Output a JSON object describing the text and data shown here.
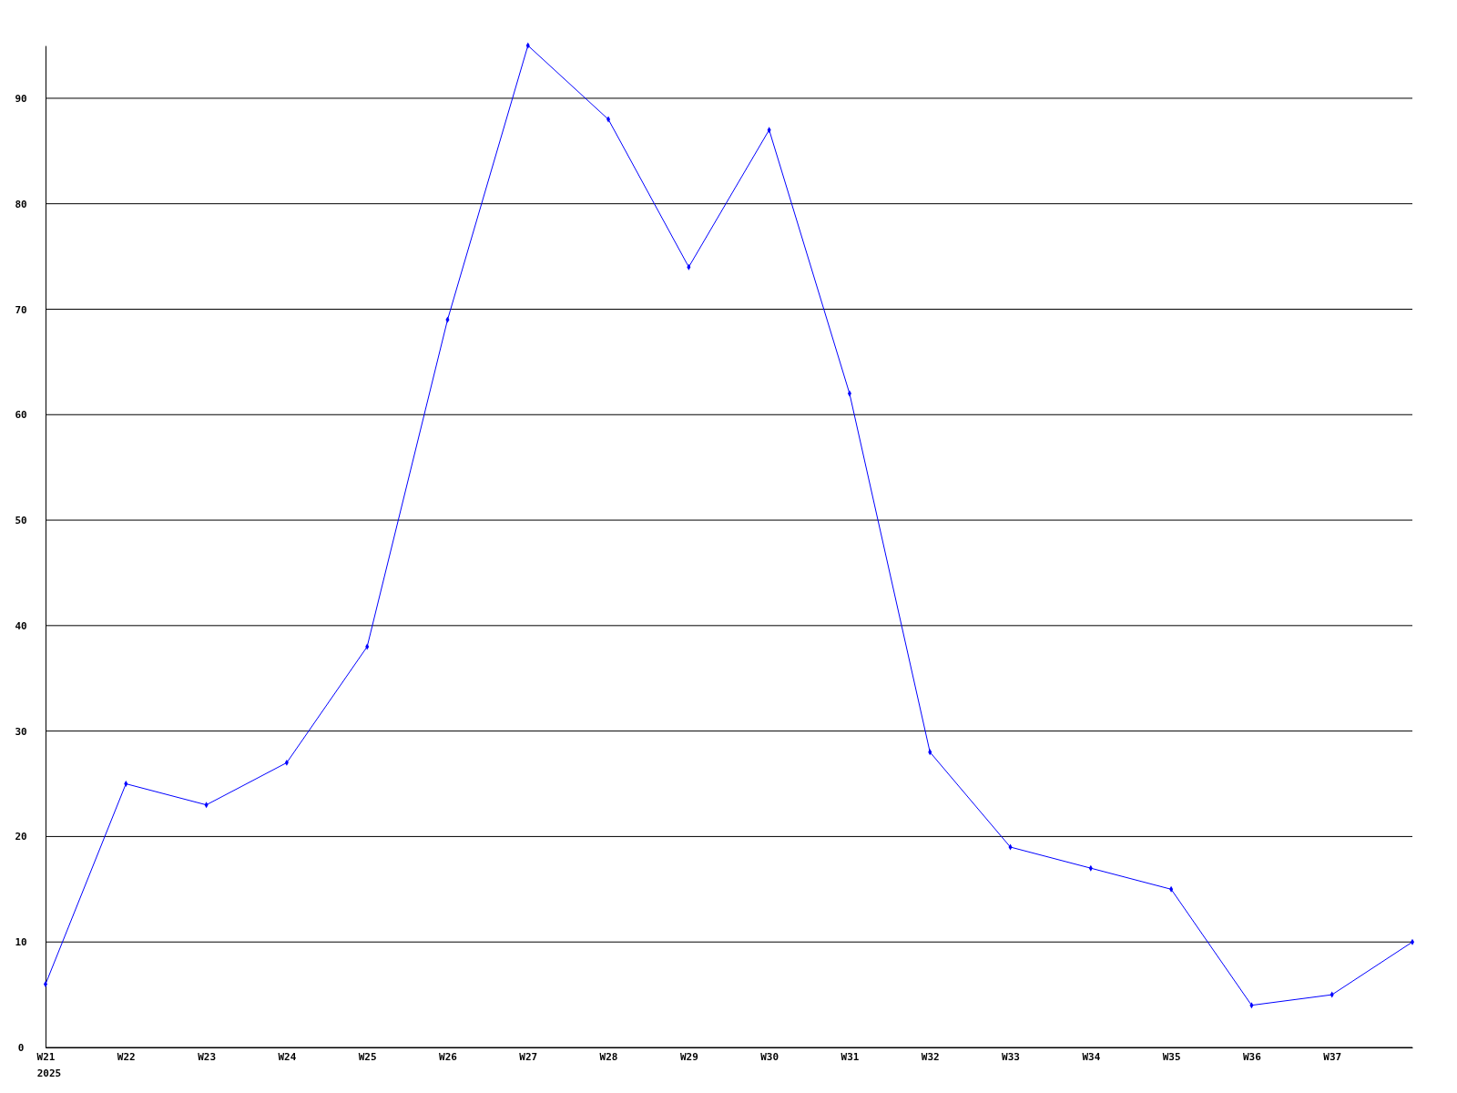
{
  "chart_data": {
    "type": "line",
    "categories": [
      "W21",
      "W22",
      "W23",
      "W24",
      "W25",
      "W26",
      "W27",
      "W28",
      "W29",
      "W30",
      "W31",
      "W32",
      "W33",
      "W34",
      "W35",
      "W36",
      "W37",
      null
    ],
    "series": [
      {
        "color": "#0000ff",
        "values": [
          6,
          25,
          23,
          27,
          38,
          69,
          95,
          88,
          74,
          87,
          62,
          28,
          19,
          17,
          15,
          4,
          5,
          10
        ]
      }
    ],
    "ylim": [
      0,
      95
    ],
    "yticks": [
      0,
      10,
      20,
      30,
      40,
      50,
      60,
      70,
      80,
      90
    ],
    "grid": "y",
    "marker": "diamond",
    "line_style": "solid",
    "annotations": [
      "2025"
    ]
  }
}
